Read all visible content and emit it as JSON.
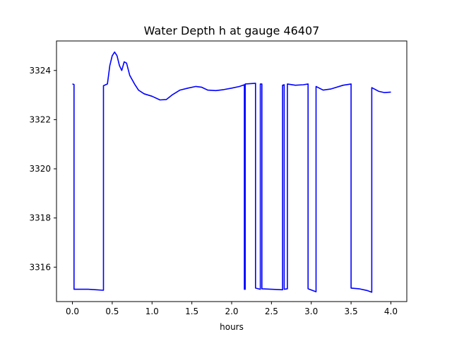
{
  "chart_data": {
    "type": "line",
    "title": "Water Depth h at gauge 46407",
    "xlabel": "hours",
    "ylabel": "",
    "xlim": [
      -0.2,
      4.2
    ],
    "ylim": [
      3314.6,
      3325.2
    ],
    "xticks": [
      0.0,
      0.5,
      1.0,
      1.5,
      2.0,
      2.5,
      3.0,
      3.5,
      4.0
    ],
    "xtick_labels": [
      "0.0",
      "0.5",
      "1.0",
      "1.5",
      "2.0",
      "2.5",
      "3.0",
      "3.5",
      "4.0"
    ],
    "yticks": [
      3316,
      3318,
      3320,
      3322,
      3324
    ],
    "ytick_labels": [
      "3316",
      "3318",
      "3320",
      "3322",
      "3324"
    ],
    "grid": false,
    "series": [
      {
        "name": "",
        "color": "#0000ff",
        "points": [
          [
            0.0,
            3323.45
          ],
          [
            0.02,
            3323.43
          ],
          [
            0.02,
            3315.1
          ],
          [
            0.2,
            3315.1
          ],
          [
            0.3,
            3315.08
          ],
          [
            0.39,
            3315.06
          ],
          [
            0.39,
            3323.38
          ],
          [
            0.44,
            3323.45
          ],
          [
            0.47,
            3324.2
          ],
          [
            0.5,
            3324.6
          ],
          [
            0.53,
            3324.75
          ],
          [
            0.56,
            3324.6
          ],
          [
            0.59,
            3324.2
          ],
          [
            0.62,
            3324.0
          ],
          [
            0.65,
            3324.35
          ],
          [
            0.68,
            3324.3
          ],
          [
            0.72,
            3323.8
          ],
          [
            0.78,
            3323.45
          ],
          [
            0.83,
            3323.2
          ],
          [
            0.9,
            3323.05
          ],
          [
            1.0,
            3322.95
          ],
          [
            1.1,
            3322.8
          ],
          [
            1.18,
            3322.82
          ],
          [
            1.25,
            3323.0
          ],
          [
            1.35,
            3323.2
          ],
          [
            1.45,
            3323.28
          ],
          [
            1.55,
            3323.35
          ],
          [
            1.62,
            3323.32
          ],
          [
            1.7,
            3323.2
          ],
          [
            1.8,
            3323.18
          ],
          [
            1.9,
            3323.22
          ],
          [
            2.0,
            3323.28
          ],
          [
            2.1,
            3323.35
          ],
          [
            2.16,
            3323.42
          ],
          [
            2.16,
            3315.1
          ],
          [
            2.17,
            3315.1
          ],
          [
            2.17,
            3323.45
          ],
          [
            2.3,
            3323.48
          ],
          [
            2.3,
            3315.15
          ],
          [
            2.36,
            3315.1
          ],
          [
            2.36,
            3323.45
          ],
          [
            2.38,
            3323.45
          ],
          [
            2.38,
            3315.12
          ],
          [
            2.5,
            3315.1
          ],
          [
            2.64,
            3315.08
          ],
          [
            2.64,
            3323.4
          ],
          [
            2.66,
            3323.42
          ],
          [
            2.66,
            3315.1
          ],
          [
            2.7,
            3315.12
          ],
          [
            2.7,
            3323.45
          ],
          [
            2.8,
            3323.4
          ],
          [
            2.9,
            3323.42
          ],
          [
            2.96,
            3323.45
          ],
          [
            2.96,
            3315.12
          ],
          [
            3.06,
            3315.0
          ],
          [
            3.06,
            3323.35
          ],
          [
            3.15,
            3323.2
          ],
          [
            3.25,
            3323.25
          ],
          [
            3.4,
            3323.4
          ],
          [
            3.5,
            3323.45
          ],
          [
            3.5,
            3315.15
          ],
          [
            3.6,
            3315.12
          ],
          [
            3.7,
            3315.05
          ],
          [
            3.76,
            3314.98
          ],
          [
            3.76,
            3323.3
          ],
          [
            3.85,
            3323.15
          ],
          [
            3.92,
            3323.1
          ],
          [
            4.0,
            3323.12
          ]
        ]
      }
    ]
  }
}
